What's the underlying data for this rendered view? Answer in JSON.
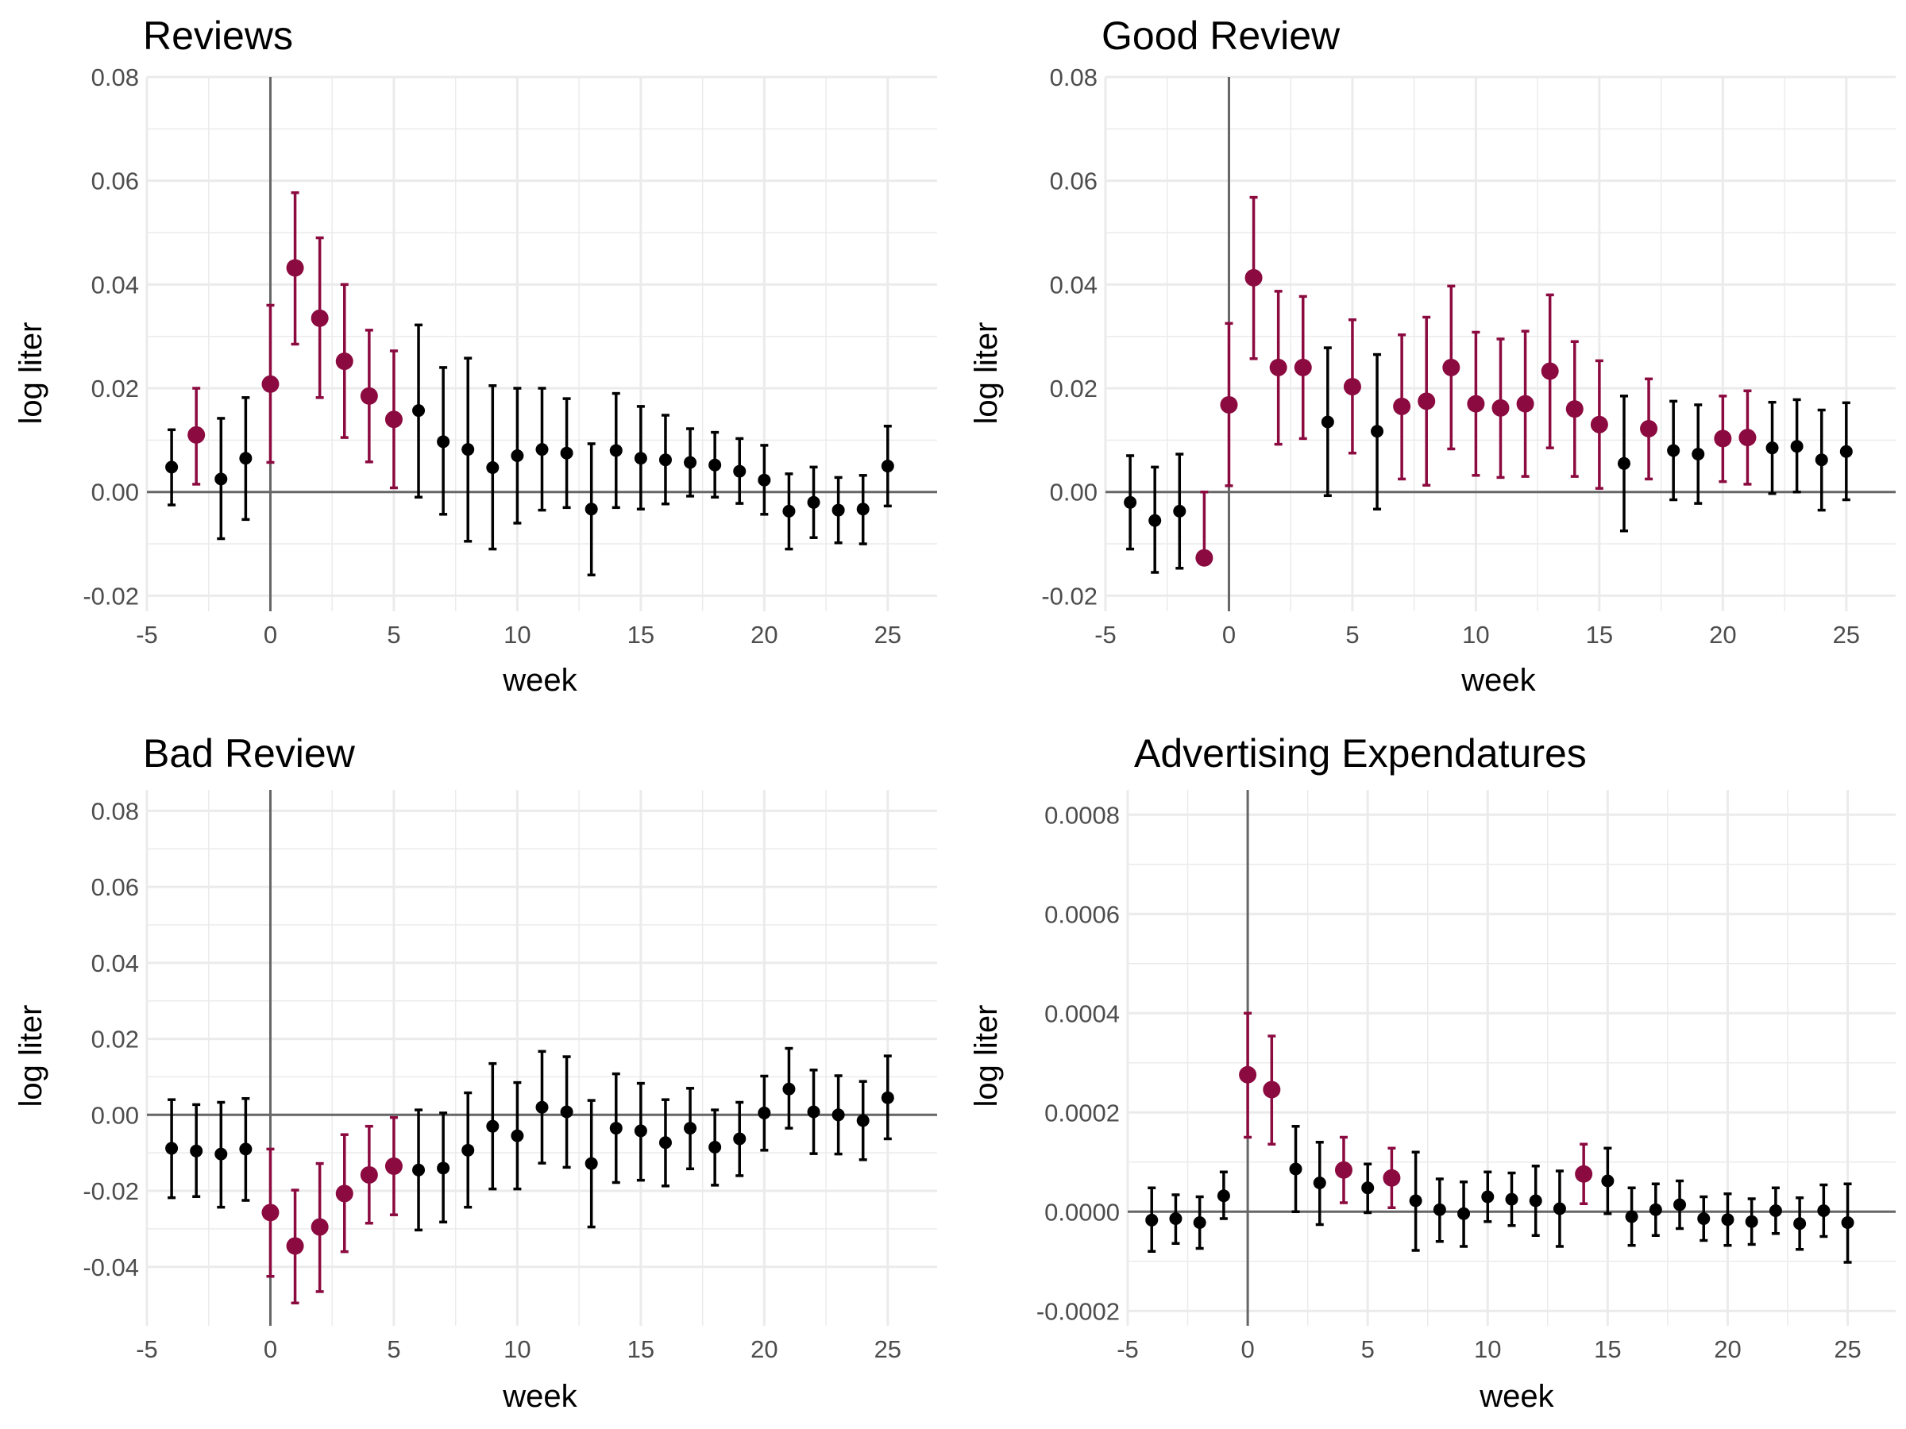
{
  "colors": {
    "significant": "#8b0a3f",
    "normal": "#000000",
    "grid": "#ebebeb",
    "zero_line": "#666666"
  },
  "chart_data": [
    {
      "type": "scatter",
      "subtype": "coefficient-plot-with-error-bars",
      "title": "Reviews",
      "xlabel": "week",
      "ylabel": "log liter",
      "xlim": [
        -5,
        27
      ],
      "ylim": [
        -0.023,
        0.08
      ],
      "xticks": [
        -5,
        0,
        5,
        10,
        15,
        20,
        25
      ],
      "yticks": [
        -0.02,
        0.0,
        0.02,
        0.04,
        0.06,
        0.08
      ],
      "ytick_labels": [
        "-0.02",
        "0.00",
        "0.02",
        "0.04",
        "0.06",
        "0.08"
      ],
      "points": [
        {
          "x": -4,
          "y": 0.0048,
          "lo": -0.0025,
          "hi": 0.012,
          "sig": false
        },
        {
          "x": -3,
          "y": 0.011,
          "lo": 0.0015,
          "hi": 0.02,
          "sig": true
        },
        {
          "x": -2,
          "y": 0.0025,
          "lo": -0.009,
          "hi": 0.0142,
          "sig": false
        },
        {
          "x": -1,
          "y": 0.0065,
          "lo": -0.0053,
          "hi": 0.0182,
          "sig": false
        },
        {
          "x": 0,
          "y": 0.0208,
          "lo": 0.0057,
          "hi": 0.036,
          "sig": true
        },
        {
          "x": 1,
          "y": 0.0432,
          "lo": 0.0285,
          "hi": 0.0577,
          "sig": true
        },
        {
          "x": 2,
          "y": 0.0335,
          "lo": 0.0182,
          "hi": 0.049,
          "sig": true
        },
        {
          "x": 3,
          "y": 0.0252,
          "lo": 0.0105,
          "hi": 0.04,
          "sig": true
        },
        {
          "x": 4,
          "y": 0.0185,
          "lo": 0.0058,
          "hi": 0.0312,
          "sig": true
        },
        {
          "x": 5,
          "y": 0.014,
          "lo": 0.0008,
          "hi": 0.0272,
          "sig": true
        },
        {
          "x": 6,
          "y": 0.0157,
          "lo": -0.001,
          "hi": 0.0322,
          "sig": false
        },
        {
          "x": 7,
          "y": 0.0097,
          "lo": -0.0043,
          "hi": 0.024,
          "sig": false
        },
        {
          "x": 8,
          "y": 0.0082,
          "lo": -0.0095,
          "hi": 0.0258,
          "sig": false
        },
        {
          "x": 9,
          "y": 0.0047,
          "lo": -0.011,
          "hi": 0.0205,
          "sig": false
        },
        {
          "x": 10,
          "y": 0.007,
          "lo": -0.006,
          "hi": 0.02,
          "sig": false
        },
        {
          "x": 11,
          "y": 0.0082,
          "lo": -0.0035,
          "hi": 0.02,
          "sig": false
        },
        {
          "x": 12,
          "y": 0.0075,
          "lo": -0.003,
          "hi": 0.018,
          "sig": false
        },
        {
          "x": 13,
          "y": -0.0033,
          "lo": -0.016,
          "hi": 0.0093,
          "sig": false
        },
        {
          "x": 14,
          "y": 0.008,
          "lo": -0.003,
          "hi": 0.019,
          "sig": false
        },
        {
          "x": 15,
          "y": 0.0065,
          "lo": -0.0033,
          "hi": 0.0165,
          "sig": false
        },
        {
          "x": 16,
          "y": 0.0062,
          "lo": -0.0023,
          "hi": 0.0148,
          "sig": false
        },
        {
          "x": 17,
          "y": 0.0057,
          "lo": -0.0008,
          "hi": 0.0122,
          "sig": false
        },
        {
          "x": 18,
          "y": 0.0052,
          "lo": -0.001,
          "hi": 0.0115,
          "sig": false
        },
        {
          "x": 19,
          "y": 0.004,
          "lo": -0.0022,
          "hi": 0.0103,
          "sig": false
        },
        {
          "x": 20,
          "y": 0.0023,
          "lo": -0.0043,
          "hi": 0.009,
          "sig": false
        },
        {
          "x": 21,
          "y": -0.0037,
          "lo": -0.011,
          "hi": 0.0035,
          "sig": false
        },
        {
          "x": 22,
          "y": -0.002,
          "lo": -0.0088,
          "hi": 0.0048,
          "sig": false
        },
        {
          "x": 23,
          "y": -0.0035,
          "lo": -0.0098,
          "hi": 0.0028,
          "sig": false
        },
        {
          "x": 24,
          "y": -0.0033,
          "lo": -0.01,
          "hi": 0.0032,
          "sig": false
        },
        {
          "x": 25,
          "y": 0.005,
          "lo": -0.0027,
          "hi": 0.0127,
          "sig": false
        }
      ]
    },
    {
      "type": "scatter",
      "subtype": "coefficient-plot-with-error-bars",
      "title": "Good Review",
      "xlabel": "week",
      "ylabel": "log liter",
      "xlim": [
        -5,
        27
      ],
      "ylim": [
        -0.023,
        0.08
      ],
      "xticks": [
        -5,
        0,
        5,
        10,
        15,
        20,
        25
      ],
      "yticks": [
        -0.02,
        0.0,
        0.02,
        0.04,
        0.06,
        0.08
      ],
      "ytick_labels": [
        "-0.02",
        "0.00",
        "0.02",
        "0.04",
        "0.06",
        "0.08"
      ],
      "points": [
        {
          "x": -4,
          "y": -0.002,
          "lo": -0.011,
          "hi": 0.007,
          "sig": false
        },
        {
          "x": -3,
          "y": -0.0055,
          "lo": -0.0155,
          "hi": 0.0048,
          "sig": false
        },
        {
          "x": -2,
          "y": -0.0037,
          "lo": -0.0147,
          "hi": 0.0073,
          "sig": false
        },
        {
          "x": -1,
          "y": -0.0127,
          "lo": -0.0127,
          "hi": 0.0,
          "sig": true
        },
        {
          "x": 0,
          "y": 0.0168,
          "lo": 0.0012,
          "hi": 0.0325,
          "sig": true
        },
        {
          "x": 1,
          "y": 0.0413,
          "lo": 0.0257,
          "hi": 0.0568,
          "sig": true
        },
        {
          "x": 2,
          "y": 0.024,
          "lo": 0.0092,
          "hi": 0.0387,
          "sig": true
        },
        {
          "x": 3,
          "y": 0.024,
          "lo": 0.0103,
          "hi": 0.0377,
          "sig": true
        },
        {
          "x": 4,
          "y": 0.0135,
          "lo": -0.0007,
          "hi": 0.0278,
          "sig": false
        },
        {
          "x": 5,
          "y": 0.0203,
          "lo": 0.0075,
          "hi": 0.0332,
          "sig": true
        },
        {
          "x": 6,
          "y": 0.0117,
          "lo": -0.0033,
          "hi": 0.0265,
          "sig": false
        },
        {
          "x": 7,
          "y": 0.0165,
          "lo": 0.0025,
          "hi": 0.0303,
          "sig": true
        },
        {
          "x": 8,
          "y": 0.0175,
          "lo": 0.0013,
          "hi": 0.0337,
          "sig": true
        },
        {
          "x": 9,
          "y": 0.024,
          "lo": 0.0083,
          "hi": 0.0397,
          "sig": true
        },
        {
          "x": 10,
          "y": 0.017,
          "lo": 0.0032,
          "hi": 0.0308,
          "sig": true
        },
        {
          "x": 11,
          "y": 0.0162,
          "lo": 0.0028,
          "hi": 0.0295,
          "sig": true
        },
        {
          "x": 12,
          "y": 0.017,
          "lo": 0.003,
          "hi": 0.031,
          "sig": true
        },
        {
          "x": 13,
          "y": 0.0233,
          "lo": 0.0085,
          "hi": 0.038,
          "sig": true
        },
        {
          "x": 14,
          "y": 0.016,
          "lo": 0.003,
          "hi": 0.029,
          "sig": true
        },
        {
          "x": 15,
          "y": 0.013,
          "lo": 0.0007,
          "hi": 0.0253,
          "sig": true
        },
        {
          "x": 16,
          "y": 0.0055,
          "lo": -0.0075,
          "hi": 0.0185,
          "sig": false
        },
        {
          "x": 17,
          "y": 0.0122,
          "lo": 0.0025,
          "hi": 0.0218,
          "sig": true
        },
        {
          "x": 18,
          "y": 0.008,
          "lo": -0.0015,
          "hi": 0.0175,
          "sig": false
        },
        {
          "x": 19,
          "y": 0.0073,
          "lo": -0.0022,
          "hi": 0.0168,
          "sig": false
        },
        {
          "x": 20,
          "y": 0.0103,
          "lo": 0.002,
          "hi": 0.0185,
          "sig": true
        },
        {
          "x": 21,
          "y": 0.0105,
          "lo": 0.0015,
          "hi": 0.0195,
          "sig": true
        },
        {
          "x": 22,
          "y": 0.0085,
          "lo": -0.0003,
          "hi": 0.0173,
          "sig": false
        },
        {
          "x": 23,
          "y": 0.0088,
          "lo": 0.0,
          "hi": 0.0178,
          "sig": false
        },
        {
          "x": 24,
          "y": 0.0062,
          "lo": -0.0035,
          "hi": 0.0158,
          "sig": false
        },
        {
          "x": 25,
          "y": 0.0078,
          "lo": -0.0015,
          "hi": 0.0172,
          "sig": false
        }
      ]
    },
    {
      "type": "scatter",
      "subtype": "coefficient-plot-with-error-bars",
      "title": "Bad Review",
      "xlabel": "week",
      "ylabel": "log liter",
      "xlim": [
        -5,
        27
      ],
      "ylim": [
        -0.0555,
        0.0855
      ],
      "xticks": [
        -5,
        0,
        5,
        10,
        15,
        20,
        25
      ],
      "yticks": [
        -0.04,
        -0.02,
        0.0,
        0.02,
        0.04,
        0.06,
        0.08
      ],
      "ytick_labels": [
        "-0.04",
        "-0.02",
        "0.00",
        "0.02",
        "0.04",
        "0.06",
        "0.08"
      ],
      "points": [
        {
          "x": -4,
          "y": -0.0088,
          "lo": -0.0218,
          "hi": 0.004,
          "sig": false
        },
        {
          "x": -3,
          "y": -0.0095,
          "lo": -0.0215,
          "hi": 0.0027,
          "sig": false
        },
        {
          "x": -2,
          "y": -0.0103,
          "lo": -0.0243,
          "hi": 0.0033,
          "sig": false
        },
        {
          "x": -1,
          "y": -0.009,
          "lo": -0.0225,
          "hi": 0.0043,
          "sig": false
        },
        {
          "x": 0,
          "y": -0.0257,
          "lo": -0.0425,
          "hi": -0.009,
          "sig": true
        },
        {
          "x": 1,
          "y": -0.0345,
          "lo": -0.0495,
          "hi": -0.0198,
          "sig": true
        },
        {
          "x": 2,
          "y": -0.0295,
          "lo": -0.0465,
          "hi": -0.0128,
          "sig": true
        },
        {
          "x": 3,
          "y": -0.0207,
          "lo": -0.036,
          "hi": -0.0052,
          "sig": true
        },
        {
          "x": 4,
          "y": -0.0158,
          "lo": -0.0285,
          "hi": -0.003,
          "sig": true
        },
        {
          "x": 5,
          "y": -0.0135,
          "lo": -0.0263,
          "hi": -0.0007,
          "sig": true
        },
        {
          "x": 6,
          "y": -0.0145,
          "lo": -0.0303,
          "hi": 0.0013,
          "sig": false
        },
        {
          "x": 7,
          "y": -0.014,
          "lo": -0.0282,
          "hi": 0.0005,
          "sig": false
        },
        {
          "x": 8,
          "y": -0.0093,
          "lo": -0.0243,
          "hi": 0.0058,
          "sig": false
        },
        {
          "x": 9,
          "y": -0.003,
          "lo": -0.0195,
          "hi": 0.0135,
          "sig": false
        },
        {
          "x": 10,
          "y": -0.0055,
          "lo": -0.0195,
          "hi": 0.0085,
          "sig": false
        },
        {
          "x": 11,
          "y": 0.002,
          "lo": -0.0127,
          "hi": 0.0167,
          "sig": false
        },
        {
          "x": 12,
          "y": 0.0008,
          "lo": -0.0138,
          "hi": 0.0153,
          "sig": false
        },
        {
          "x": 13,
          "y": -0.0128,
          "lo": -0.0295,
          "hi": 0.0038,
          "sig": false
        },
        {
          "x": 14,
          "y": -0.0035,
          "lo": -0.0178,
          "hi": 0.0108,
          "sig": false
        },
        {
          "x": 15,
          "y": -0.0042,
          "lo": -0.0172,
          "hi": 0.0083,
          "sig": false
        },
        {
          "x": 16,
          "y": -0.0073,
          "lo": -0.0187,
          "hi": 0.004,
          "sig": false
        },
        {
          "x": 17,
          "y": -0.0035,
          "lo": -0.0142,
          "hi": 0.007,
          "sig": false
        },
        {
          "x": 18,
          "y": -0.0085,
          "lo": -0.0185,
          "hi": 0.0013,
          "sig": false
        },
        {
          "x": 19,
          "y": -0.0063,
          "lo": -0.016,
          "hi": 0.0033,
          "sig": false
        },
        {
          "x": 20,
          "y": 0.0005,
          "lo": -0.0093,
          "hi": 0.0102,
          "sig": false
        },
        {
          "x": 21,
          "y": 0.0068,
          "lo": -0.0035,
          "hi": 0.0175,
          "sig": false
        },
        {
          "x": 22,
          "y": 0.0008,
          "lo": -0.0102,
          "hi": 0.0118,
          "sig": false
        },
        {
          "x": 23,
          "y": 0.0,
          "lo": -0.0103,
          "hi": 0.0103,
          "sig": false
        },
        {
          "x": 24,
          "y": -0.0015,
          "lo": -0.0118,
          "hi": 0.0088,
          "sig": false
        },
        {
          "x": 25,
          "y": 0.0045,
          "lo": -0.0063,
          "hi": 0.0155,
          "sig": false
        }
      ]
    },
    {
      "type": "scatter",
      "subtype": "coefficient-plot-with-error-bars",
      "title": "Advertising Expendatures",
      "xlabel": "week",
      "ylabel": "log liter",
      "xlim": [
        -5,
        27
      ],
      "ylim": [
        -0.00023,
        0.00085
      ],
      "xticks": [
        -5,
        0,
        5,
        10,
        15,
        20,
        25
      ],
      "yticks": [
        -0.0002,
        0.0,
        0.0002,
        0.0004,
        0.0006,
        0.0008
      ],
      "ytick_labels": [
        "-0.0002",
        "0.0000",
        "0.0002",
        "0.0004",
        "0.0006",
        "0.0008"
      ],
      "points": [
        {
          "x": -4,
          "y": -1.7e-05,
          "lo": -8e-05,
          "hi": 4.8e-05,
          "sig": false
        },
        {
          "x": -3,
          "y": -1.4e-05,
          "lo": -6.4e-05,
          "hi": 3.4e-05,
          "sig": false
        },
        {
          "x": -2,
          "y": -2.2e-05,
          "lo": -7.4e-05,
          "hi": 3e-05,
          "sig": false
        },
        {
          "x": -1,
          "y": 3.2e-05,
          "lo": -1.4e-05,
          "hi": 8e-05,
          "sig": false
        },
        {
          "x": 0,
          "y": 0.000276,
          "lo": 0.00015,
          "hi": 0.0004,
          "sig": true
        },
        {
          "x": 1,
          "y": 0.000246,
          "lo": 0.000136,
          "hi": 0.000354,
          "sig": true
        },
        {
          "x": 2,
          "y": 8.6e-05,
          "lo": 0.0,
          "hi": 0.000172,
          "sig": false
        },
        {
          "x": 3,
          "y": 5.8e-05,
          "lo": -2.6e-05,
          "hi": 0.00014,
          "sig": false
        },
        {
          "x": 4,
          "y": 8.4e-05,
          "lo": 1.8e-05,
          "hi": 0.00015,
          "sig": true
        },
        {
          "x": 5,
          "y": 4.8e-05,
          "lo": -2e-06,
          "hi": 9.6e-05,
          "sig": false
        },
        {
          "x": 6,
          "y": 6.8e-05,
          "lo": 8e-06,
          "hi": 0.000128,
          "sig": true
        },
        {
          "x": 7,
          "y": 2.2e-05,
          "lo": -7.8e-05,
          "hi": 0.00012,
          "sig": false
        },
        {
          "x": 8,
          "y": 4e-06,
          "lo": -6e-05,
          "hi": 6.6e-05,
          "sig": false
        },
        {
          "x": 9,
          "y": -4e-06,
          "lo": -7e-05,
          "hi": 6e-05,
          "sig": false
        },
        {
          "x": 10,
          "y": 3e-05,
          "lo": -2e-05,
          "hi": 8e-05,
          "sig": false
        },
        {
          "x": 11,
          "y": 2.5e-05,
          "lo": -2.8e-05,
          "hi": 7.8e-05,
          "sig": false
        },
        {
          "x": 12,
          "y": 2.2e-05,
          "lo": -4.8e-05,
          "hi": 9.2e-05,
          "sig": false
        },
        {
          "x": 13,
          "y": 6e-06,
          "lo": -7e-05,
          "hi": 8.2e-05,
          "sig": false
        },
        {
          "x": 14,
          "y": 7.6e-05,
          "lo": 1.6e-05,
          "hi": 0.000136,
          "sig": true
        },
        {
          "x": 15,
          "y": 6.2e-05,
          "lo": -4e-06,
          "hi": 0.000128,
          "sig": false
        },
        {
          "x": 16,
          "y": -1e-05,
          "lo": -6.8e-05,
          "hi": 4.8e-05,
          "sig": false
        },
        {
          "x": 17,
          "y": 4e-06,
          "lo": -4.8e-05,
          "hi": 5.6e-05,
          "sig": false
        },
        {
          "x": 18,
          "y": 1.4e-05,
          "lo": -3.4e-05,
          "hi": 6.2e-05,
          "sig": false
        },
        {
          "x": 19,
          "y": -1.4e-05,
          "lo": -5.8e-05,
          "hi": 3e-05,
          "sig": false
        },
        {
          "x": 20,
          "y": -1.6e-05,
          "lo": -6.8e-05,
          "hi": 3.6e-05,
          "sig": false
        },
        {
          "x": 21,
          "y": -2e-05,
          "lo": -6.6e-05,
          "hi": 2.6e-05,
          "sig": false
        },
        {
          "x": 22,
          "y": 2e-06,
          "lo": -4.4e-05,
          "hi": 4.8e-05,
          "sig": false
        },
        {
          "x": 23,
          "y": -2.4e-05,
          "lo": -7.6e-05,
          "hi": 2.8e-05,
          "sig": false
        },
        {
          "x": 24,
          "y": 2e-06,
          "lo": -5e-05,
          "hi": 5.4e-05,
          "sig": false
        },
        {
          "x": 25,
          "y": -2.2e-05,
          "lo": -0.000102,
          "hi": 5.6e-05,
          "sig": false
        }
      ]
    }
  ]
}
